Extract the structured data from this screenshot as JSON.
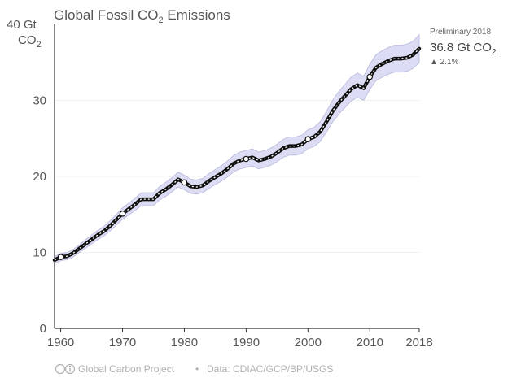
{
  "chart_data": {
    "type": "line",
    "title": "Global Fossil CO",
    "title_subscript": "2",
    "title_suffix": " Emissions",
    "y_unit_line1": "40 Gt",
    "y_unit_line2": "CO",
    "y_unit_subscript": "2",
    "ylim": [
      0,
      40
    ],
    "xlim": [
      1959,
      2018
    ],
    "yticks": [
      0,
      10,
      20,
      30
    ],
    "ytick_labels": [
      "0",
      "10",
      "20",
      "30"
    ],
    "xticks": [
      1960,
      1970,
      1980,
      1990,
      2000,
      2010,
      2018
    ],
    "xtick_labels": [
      "1960",
      "1970",
      "1980",
      "1990",
      "2000",
      "2010",
      "2018"
    ],
    "grid": true,
    "series": [
      {
        "name": "Global fossil CO2 emissions",
        "unit": "Gt CO2",
        "x": [
          1959,
          1960,
          1961,
          1962,
          1963,
          1964,
          1965,
          1966,
          1967,
          1968,
          1969,
          1970,
          1971,
          1972,
          1973,
          1974,
          1975,
          1976,
          1977,
          1978,
          1979,
          1980,
          1981,
          1982,
          1983,
          1984,
          1985,
          1986,
          1987,
          1988,
          1989,
          1990,
          1991,
          1992,
          1993,
          1994,
          1995,
          1996,
          1997,
          1998,
          1999,
          2000,
          2001,
          2002,
          2003,
          2004,
          2005,
          2006,
          2007,
          2008,
          2009,
          2010,
          2011,
          2012,
          2013,
          2014,
          2015,
          2016,
          2017,
          2018
        ],
        "values": [
          9.0,
          9.4,
          9.5,
          9.9,
          10.5,
          11.1,
          11.7,
          12.3,
          12.8,
          13.5,
          14.3,
          15.1,
          15.7,
          16.3,
          17.0,
          17.0,
          17.0,
          17.8,
          18.3,
          18.9,
          19.6,
          19.2,
          18.7,
          18.6,
          18.8,
          19.4,
          19.9,
          20.4,
          21.0,
          21.7,
          22.1,
          22.3,
          22.5,
          22.1,
          22.3,
          22.6,
          23.1,
          23.7,
          24.0,
          24.0,
          24.2,
          24.9,
          25.2,
          25.9,
          27.2,
          28.6,
          29.7,
          30.6,
          31.5,
          32.0,
          31.6,
          33.1,
          34.3,
          34.8,
          35.2,
          35.5,
          35.5,
          35.6,
          36.0,
          36.8
        ],
        "uncertainty_pct": 5
      }
    ],
    "markers_x": [
      1960,
      1970,
      1980,
      1990,
      2000,
      2010
    ],
    "annotation": {
      "label": "Preliminary 2018",
      "value_text": "36.8 Gt CO",
      "value_subscript": "2",
      "change_text": "▲ 2.1%"
    },
    "colors": {
      "band": "#dcdcf4",
      "band_edge": "#b8b8de",
      "line": "#111111",
      "dash": "#ffffff",
      "marker_fill": "#ffffff",
      "grid": "#f0f0f0",
      "axis": "#333333"
    }
  },
  "footer": {
    "cc_icon": "cc-by-icon",
    "org_text": "Global Carbon Project",
    "separator": "•",
    "source_text": "Data: CDIAC/GCP/BP/USGS"
  }
}
